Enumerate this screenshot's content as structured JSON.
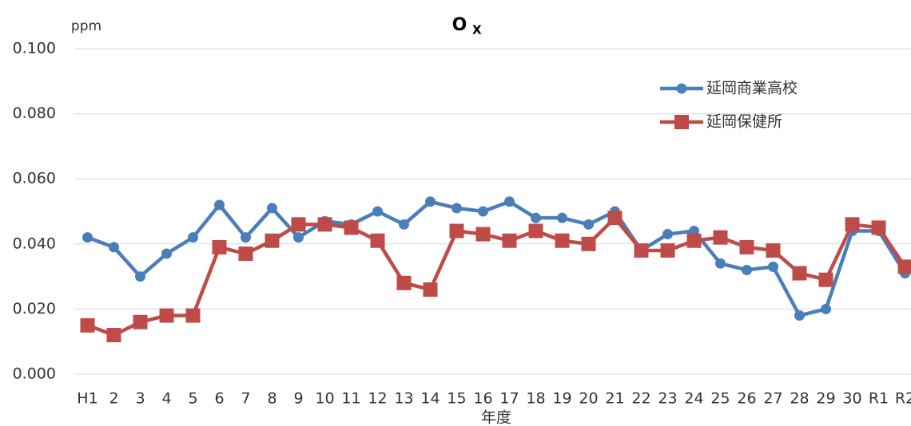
{
  "chart_data": {
    "type": "line",
    "title": "O",
    "title_subscript": "X",
    "y_unit_label": "ppm",
    "x_label": "年度",
    "categories": [
      "H1",
      "2",
      "3",
      "4",
      "5",
      "6",
      "7",
      "8",
      "9",
      "10",
      "11",
      "12",
      "13",
      "14",
      "15",
      "16",
      "17",
      "18",
      "19",
      "20",
      "21",
      "22",
      "23",
      "24",
      "25",
      "26",
      "27",
      "28",
      "29",
      "30",
      "R1",
      "R2"
    ],
    "series": [
      {
        "name": "延岡商業高校",
        "color": "#4a7ebb",
        "marker": "circle",
        "values": [
          0.042,
          0.039,
          0.03,
          0.037,
          0.042,
          0.052,
          0.042,
          0.051,
          0.042,
          0.047,
          0.046,
          0.05,
          0.046,
          0.053,
          0.051,
          0.05,
          0.053,
          0.048,
          0.048,
          0.046,
          0.05,
          0.038,
          0.043,
          0.044,
          0.034,
          0.032,
          0.033,
          0.018,
          0.02,
          0.044,
          0.044,
          0.031
        ]
      },
      {
        "name": "延岡保健所",
        "color": "#be4b48",
        "marker": "square",
        "values": [
          0.015,
          0.012,
          0.016,
          0.018,
          0.018,
          0.039,
          0.037,
          0.041,
          0.046,
          0.046,
          0.045,
          0.041,
          0.028,
          0.026,
          0.044,
          0.043,
          0.041,
          0.044,
          0.041,
          0.04,
          0.048,
          0.038,
          0.038,
          0.041,
          0.042,
          0.039,
          0.038,
          0.031,
          0.029,
          0.046,
          0.045,
          0.033
        ]
      }
    ],
    "ylim": [
      0,
      0.1
    ],
    "yticks": [
      {
        "value": 0,
        "label": "0.000"
      },
      {
        "value": 0.02,
        "label": "0.020"
      },
      {
        "value": 0.04,
        "label": "0.040"
      },
      {
        "value": 0.06,
        "label": "0.060"
      },
      {
        "value": 0.08,
        "label": "0.080"
      },
      {
        "value": 0.1,
        "label": "0.100"
      }
    ],
    "grid": true,
    "legend": "upper right"
  }
}
